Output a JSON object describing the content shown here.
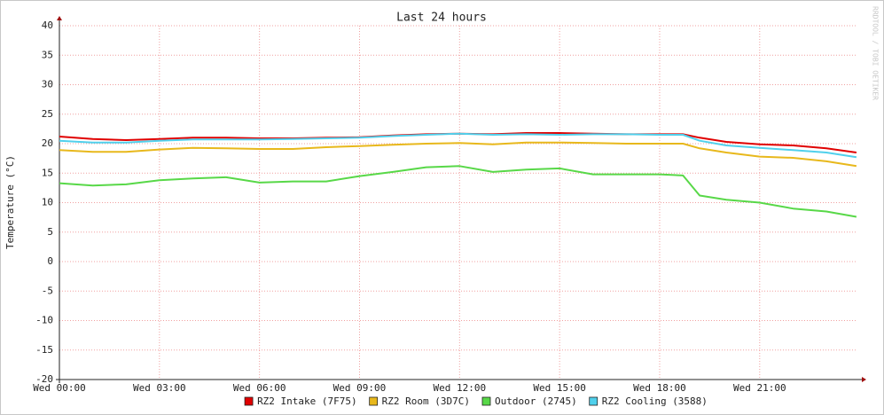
{
  "chart_data": {
    "type": "line",
    "title": "Last 24 hours",
    "y_label": "Temperature (°C)",
    "watermark": "RRDTOOL / TOBI OETIKER",
    "x": [
      0,
      1,
      2,
      3,
      4,
      5,
      6,
      7,
      8,
      9,
      10,
      11,
      12,
      13,
      14,
      15,
      16,
      17,
      18,
      18.7,
      19.2,
      20,
      21,
      22,
      23,
      23.9
    ],
    "xlim": [
      0,
      23.93
    ],
    "xticks": [
      {
        "value": 0,
        "label": "Wed 00:00"
      },
      {
        "value": 3,
        "label": "Wed 03:00"
      },
      {
        "value": 6,
        "label": "Wed 06:00"
      },
      {
        "value": 9,
        "label": "Wed 09:00"
      },
      {
        "value": 12,
        "label": "Wed 12:00"
      },
      {
        "value": 15,
        "label": "Wed 15:00"
      },
      {
        "value": 18,
        "label": "Wed 18:00"
      },
      {
        "value": 21,
        "label": "Wed 21:00"
      }
    ],
    "ylim": [
      -20,
      40
    ],
    "yticks": [
      -20,
      -15,
      -10,
      -5,
      0,
      5,
      10,
      15,
      20,
      25,
      30,
      35,
      40
    ],
    "grid": true,
    "legend": "bottom",
    "series": [
      {
        "name": "RZ2 Intake (7F75)",
        "color": "#e00000",
        "values": [
          21.2,
          20.8,
          20.6,
          20.8,
          21,
          21,
          20.9,
          20.9,
          21,
          21.1,
          21.4,
          21.6,
          21.7,
          21.6,
          21.8,
          21.8,
          21.7,
          21.6,
          21.6,
          21.6,
          21.0,
          20.3,
          19.9,
          19.7,
          19.2,
          18.5
        ]
      },
      {
        "name": "RZ2 Room (3D7C)",
        "color": "#e8b81c",
        "values": [
          18.9,
          18.6,
          18.6,
          19,
          19.3,
          19.2,
          19.1,
          19.1,
          19.4,
          19.6,
          19.8,
          20,
          20.1,
          19.9,
          20.2,
          20.2,
          20.1,
          20,
          20,
          20,
          19.2,
          18.5,
          17.8,
          17.6,
          17,
          16.2
        ]
      },
      {
        "name": "Outdoor (2745)",
        "color": "#58d848",
        "values": [
          13.3,
          12.9,
          13.1,
          13.8,
          14.1,
          14.3,
          13.4,
          13.6,
          13.6,
          14.5,
          15.2,
          16,
          16.2,
          15.2,
          15.6,
          15.8,
          14.8,
          14.8,
          14.8,
          14.6,
          11.2,
          10.5,
          10,
          9,
          8.5,
          7.6
        ]
      },
      {
        "name": "RZ2 Cooling (3588)",
        "color": "#50d0ec",
        "values": [
          20.5,
          20.2,
          20.2,
          20.5,
          20.7,
          20.7,
          20.7,
          20.8,
          20.9,
          21,
          21.3,
          21.5,
          21.7,
          21.5,
          21.6,
          21.5,
          21.6,
          21.6,
          21.5,
          21.5,
          20.5,
          19.7,
          19.3,
          18.9,
          18.5,
          17.7
        ]
      }
    ]
  }
}
